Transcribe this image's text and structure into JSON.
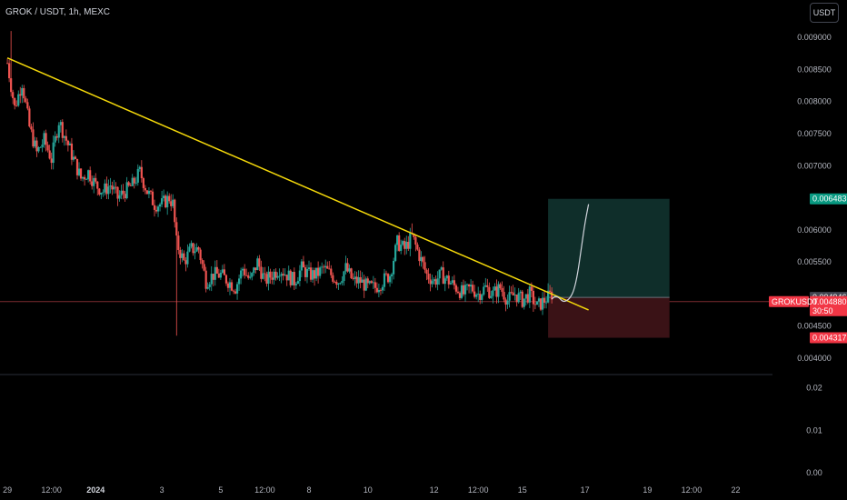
{
  "header": {
    "title": "GROK / USDT, 1h, MEXC",
    "currency_button": "USDT"
  },
  "colors": {
    "background": "#000000",
    "up": "#26a69a",
    "down": "#ef5350",
    "trendline": "#f5d90a",
    "target_zone": "#0f2e2a",
    "stop_zone": "#3a1216",
    "projection": "#d1d4dc",
    "last_price": "#f23645",
    "entry_label": "#434651",
    "target_label": "#089981",
    "stop_label": "#f23645"
  },
  "chart_data": [
    {
      "type": "candlestick",
      "title": "GROK / USDT, 1h, MEXC",
      "symbol": "GROKUSDT",
      "exchange": "MEXC",
      "interval": "1h",
      "y_axis_ticks": [
        "0.009000",
        "0.008500",
        "0.008000",
        "0.007500",
        "0.007000",
        "0.006000",
        "0.005500",
        "0.004500",
        "0.004000"
      ],
      "ylim": [
        0.0038,
        0.0093
      ],
      "x_axis_ticks": [
        {
          "label": "29",
          "x": 0
        },
        {
          "label": "12:00",
          "x": 12
        },
        {
          "label": "2024",
          "x": 24,
          "bold": true
        },
        {
          "label": "3",
          "x": 42
        },
        {
          "label": "5",
          "x": 58
        },
        {
          "label": "12:00",
          "x": 70
        },
        {
          "label": "8",
          "x": 82
        },
        {
          "label": "10",
          "x": 98
        },
        {
          "label": "12",
          "x": 116
        },
        {
          "label": "12:00",
          "x": 128
        },
        {
          "label": "15",
          "x": 140
        },
        {
          "label": "17",
          "x": 157
        },
        {
          "label": "19",
          "x": 174
        },
        {
          "label": "12:00",
          "x": 186
        },
        {
          "label": "22",
          "x": 198
        }
      ],
      "xlim": [
        -2,
        208
      ],
      "price_path": [
        [
          0,
          0.0086
        ],
        [
          2,
          0.0079
        ],
        [
          4,
          0.0083
        ],
        [
          6,
          0.0076
        ],
        [
          8,
          0.0072
        ],
        [
          10,
          0.0074
        ],
        [
          12,
          0.0071
        ],
        [
          14,
          0.0077
        ],
        [
          16,
          0.0074
        ],
        [
          18,
          0.0071
        ],
        [
          20,
          0.0068
        ],
        [
          22,
          0.0069
        ],
        [
          24,
          0.0067
        ],
        [
          26,
          0.0066
        ],
        [
          28,
          0.0067
        ],
        [
          30,
          0.0065
        ],
        [
          32,
          0.0066
        ],
        [
          34,
          0.0067
        ],
        [
          36,
          0.0069
        ],
        [
          38,
          0.0066
        ],
        [
          40,
          0.0064
        ],
        [
          42,
          0.0064
        ],
        [
          44,
          0.0065
        ],
        [
          45,
          0.0064
        ],
        [
          46,
          0.0058
        ],
        [
          48,
          0.0055
        ],
        [
          50,
          0.0057
        ],
        [
          52,
          0.0057
        ],
        [
          54,
          0.0052
        ],
        [
          56,
          0.0053
        ],
        [
          58,
          0.0053
        ],
        [
          60,
          0.0052
        ],
        [
          62,
          0.0051
        ],
        [
          64,
          0.0054
        ],
        [
          66,
          0.0052
        ],
        [
          68,
          0.0055
        ],
        [
          70,
          0.0052
        ],
        [
          72,
          0.0053
        ],
        [
          74,
          0.0054
        ],
        [
          76,
          0.0053
        ],
        [
          78,
          0.0052
        ],
        [
          80,
          0.0054
        ],
        [
          82,
          0.0053
        ],
        [
          84,
          0.0053
        ],
        [
          86,
          0.0054
        ],
        [
          88,
          0.0053
        ],
        [
          90,
          0.0052
        ],
        [
          92,
          0.0054
        ],
        [
          94,
          0.0052
        ],
        [
          96,
          0.0052
        ],
        [
          98,
          0.0051
        ],
        [
          100,
          0.0051
        ],
        [
          102,
          0.0052
        ],
        [
          104,
          0.0053
        ],
        [
          106,
          0.0058
        ],
        [
          108,
          0.0057
        ],
        [
          110,
          0.0059
        ],
        [
          112,
          0.0056
        ],
        [
          114,
          0.0053
        ],
        [
          116,
          0.0052
        ],
        [
          118,
          0.0053
        ],
        [
          120,
          0.0052
        ],
        [
          122,
          0.0051
        ],
        [
          124,
          0.005
        ],
        [
          126,
          0.0051
        ],
        [
          128,
          0.005
        ],
        [
          130,
          0.0051
        ],
        [
          132,
          0.005
        ],
        [
          134,
          0.0051
        ],
        [
          136,
          0.0049
        ],
        [
          138,
          0.005
        ],
        [
          140,
          0.0049
        ],
        [
          142,
          0.005
        ],
        [
          144,
          0.0048
        ],
        [
          146,
          0.0049
        ],
        [
          148,
          0.005
        ]
      ],
      "wick_extremes": [
        {
          "x": 1,
          "high": 0.0091
        },
        {
          "x": 46,
          "low": 0.00435
        },
        {
          "x": 110,
          "high": 0.0061
        }
      ],
      "trendline": {
        "x1": 0,
        "y1": 0.00868,
        "x2": 158,
        "y2": 0.00475
      },
      "projection_path": [
        [
          148,
          0.00492
        ],
        [
          149,
          0.00497
        ],
        [
          150,
          0.00494
        ],
        [
          151,
          0.00488
        ],
        [
          152,
          0.00489
        ],
        [
          153,
          0.00494
        ],
        [
          154,
          0.00505
        ],
        [
          155,
          0.0053
        ],
        [
          156,
          0.0057
        ],
        [
          157,
          0.0061
        ],
        [
          158,
          0.0064
        ]
      ],
      "position": {
        "x_start": 147,
        "x_end": 180,
        "target": 0.006483,
        "entry": 0.004946,
        "stop": 0.004317
      },
      "last_price": 0.00488,
      "countdown": "30:50",
      "price_labels": {
        "target": "0.006483",
        "entry": "0.004946",
        "last": "0.004880",
        "stop": "0.004317",
        "symbol": "GROKUSDT"
      },
      "secondary_axis_ticks": [
        "0.02",
        "0.01",
        "0.00"
      ],
      "secondary_ylim": [
        0,
        0.0225
      ]
    }
  ]
}
